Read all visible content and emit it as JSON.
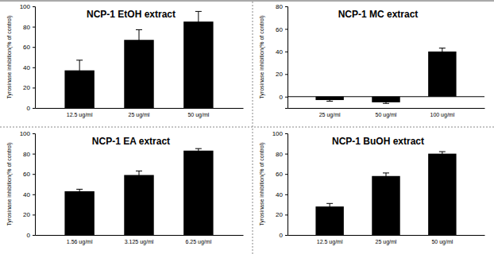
{
  "chart_data": [
    {
      "type": "bar",
      "title": "NCP-1 EtOH extract",
      "y_label": "Tyrosinase inhibition(% of control)",
      "categories": [
        "12.5 ug/ml",
        "25 ug/ml",
        "50 ug/ml"
      ],
      "values": [
        37,
        67,
        85
      ],
      "errors": [
        10,
        10,
        10
      ],
      "color": "#000000",
      "ylim": [
        0,
        100
      ],
      "yticks": [
        0,
        20,
        40,
        60,
        80,
        100
      ]
    },
    {
      "type": "bar",
      "title": "NCP-1 MC extract",
      "y_label": "Tyrosinase inhibition(% of control)",
      "categories": [
        "25 ug/ml",
        "50 ug/ml",
        "100 ug/ml"
      ],
      "values": [
        -3,
        -5,
        40
      ],
      "errors": [
        1,
        1,
        3
      ],
      "color": "#000000",
      "ylim": [
        -10,
        80
      ],
      "yticks": [
        0,
        20,
        40,
        60,
        80
      ]
    },
    {
      "type": "bar",
      "title": "NCP-1 EA extract",
      "y_label": "Tyrosinase inhibition(% of control)",
      "categories": [
        "1.56 ug/ml",
        "3.125 ug/ml",
        "6.25 ug/ml"
      ],
      "values": [
        43,
        59,
        83
      ],
      "errors": [
        2,
        4,
        2
      ],
      "color": "#000000",
      "ylim": [
        0,
        100
      ],
      "yticks": [
        0,
        20,
        40,
        60,
        80,
        100
      ]
    },
    {
      "type": "bar",
      "title": "NCP-1 BuOH extract",
      "y_label": "Tyrosinase inhibition(% of control)",
      "categories": [
        "12.5 ug/ml",
        "25 ug/ml",
        "50 ug/ml"
      ],
      "values": [
        28,
        58,
        80
      ],
      "errors": [
        3,
        3,
        2
      ],
      "color": "#000000",
      "ylim": [
        0,
        100
      ],
      "yticks": [
        0,
        20,
        40,
        60,
        80,
        100
      ]
    }
  ]
}
